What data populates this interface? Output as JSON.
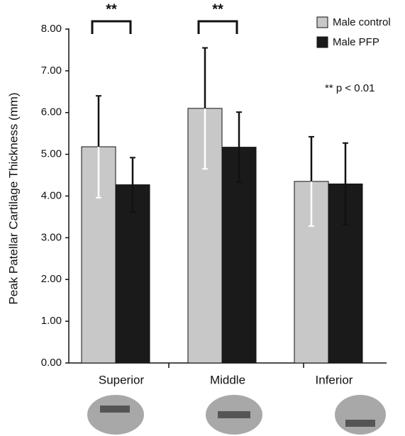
{
  "chart_data": {
    "type": "bar",
    "ylabel": "Peak Patellar Cartilage Thickness (mm)",
    "categories": [
      "Superior",
      "Middle",
      "Inferior"
    ],
    "series": [
      {
        "name": "Male control",
        "color": "#c8c8c8",
        "values": [
          5.18,
          6.1,
          4.35
        ],
        "errors": [
          1.22,
          1.45,
          1.07
        ]
      },
      {
        "name": "Male PFP",
        "color": "#1a1a1a",
        "values": [
          4.27,
          5.17,
          4.29
        ],
        "errors": [
          0.65,
          0.84,
          0.98
        ]
      }
    ],
    "ylim": [
      0,
      8
    ],
    "yticks": [
      {
        "value": 0,
        "label": "0.00"
      },
      {
        "value": 1,
        "label": "1.00"
      },
      {
        "value": 2,
        "label": "2.00"
      },
      {
        "value": 3,
        "label": "3.00"
      },
      {
        "value": 4,
        "label": "4.00"
      },
      {
        "value": 5,
        "label": "5.00"
      },
      {
        "value": 6,
        "label": "6.00"
      },
      {
        "value": 7,
        "label": "7.00"
      },
      {
        "value": 8,
        "label": "8.00"
      }
    ],
    "significance": [
      "**",
      "**"
    ],
    "significance_note": "** p < 0.01"
  }
}
